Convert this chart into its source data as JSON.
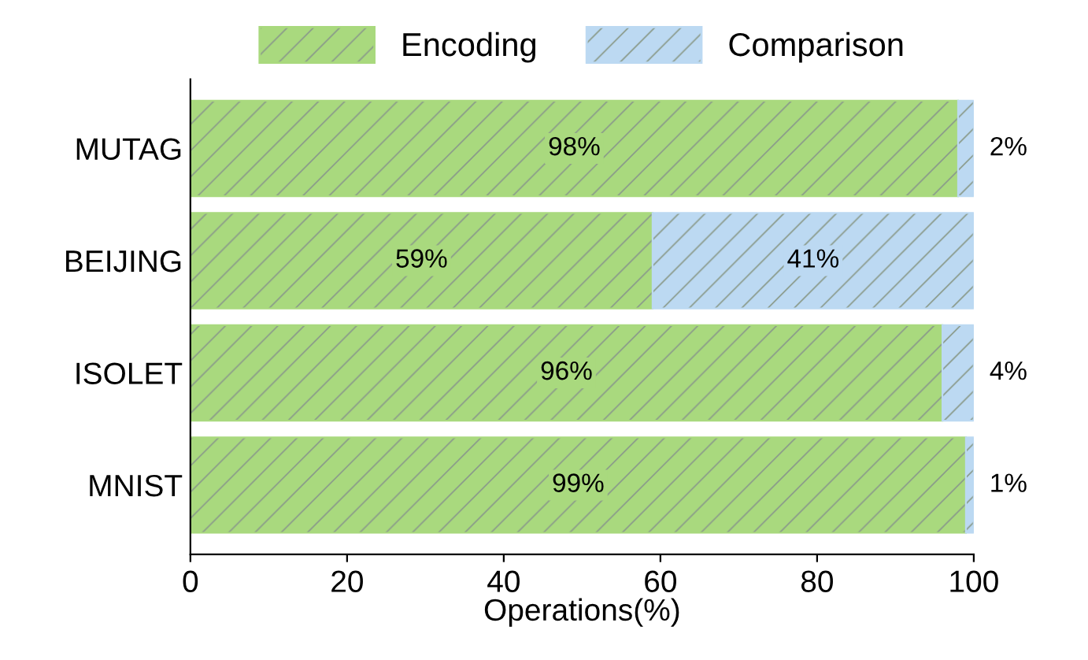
{
  "chart_data": {
    "type": "bar",
    "orientation": "horizontal",
    "stacked": true,
    "xlabel": "Operations(%)",
    "categories": [
      "MUTAG",
      "BEIJING",
      "ISOLET",
      "MNIST"
    ],
    "series": [
      {
        "name": "Encoding",
        "color": "#a9d97e",
        "values": [
          98,
          59,
          96,
          99
        ],
        "value_labels": [
          "98%",
          "59%",
          "96%",
          "99%"
        ]
      },
      {
        "name": "Comparison",
        "color": "#bcd9f2",
        "values": [
          2,
          41,
          4,
          1
        ],
        "value_labels": [
          "2%",
          "41%",
          "4%",
          "1%"
        ]
      }
    ],
    "xlim": [
      0,
      100
    ],
    "xticks": [
      0,
      20,
      40,
      60,
      80,
      100
    ],
    "grid": false,
    "legend": "top"
  }
}
